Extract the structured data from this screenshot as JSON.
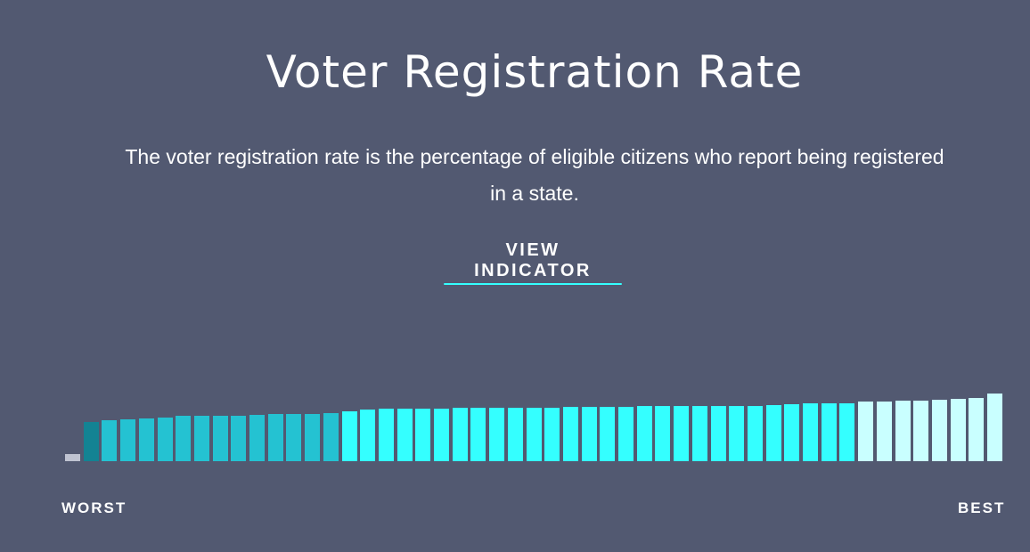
{
  "header": {
    "title": "Voter Registration Rate",
    "description_line1": "The voter registration rate is the percentage of eligible citizens who report being registered",
    "description_line2": "in a state."
  },
  "cta": {
    "label": "VIEW INDICATOR",
    "underline_color": "#34ffff"
  },
  "colors": {
    "background": "#525971",
    "no_data": "#bfc3d1",
    "worst": "#138393",
    "low": "#24c2d2",
    "mid": "#34ffff",
    "high": "#c9ffff"
  },
  "axis": {
    "left_label": "WORST",
    "right_label": "BEST"
  },
  "chart_data": {
    "type": "bar",
    "title": "Voter Registration Rate",
    "xlabel": "",
    "ylabel": "",
    "x_axis_labels": {
      "left": "WORST",
      "right": "BEST"
    },
    "grid": false,
    "legend": "none",
    "note": "States ranked from worst to best; relative bar heights in pixels (no numeric axis shown)",
    "values": [
      8,
      44,
      46,
      47,
      48,
      49,
      51,
      51,
      51,
      51,
      52,
      53,
      53,
      53,
      54,
      56,
      58,
      59,
      59,
      59,
      59,
      60,
      60,
      60,
      60,
      60,
      60,
      61,
      61,
      61,
      61,
      62,
      62,
      62,
      62,
      62,
      62,
      62,
      63,
      64,
      65,
      65,
      65,
      67,
      67,
      68,
      68,
      69,
      70,
      71,
      76
    ],
    "tiers": [
      "no_data",
      "worst",
      "low",
      "low",
      "low",
      "low",
      "low",
      "low",
      "low",
      "low",
      "low",
      "low",
      "low",
      "low",
      "low",
      "mid",
      "mid",
      "mid",
      "mid",
      "mid",
      "mid",
      "mid",
      "mid",
      "mid",
      "mid",
      "mid",
      "mid",
      "mid",
      "mid",
      "mid",
      "mid",
      "mid",
      "mid",
      "mid",
      "mid",
      "mid",
      "mid",
      "mid",
      "mid",
      "mid",
      "mid",
      "mid",
      "mid",
      "high",
      "high",
      "high",
      "high",
      "high",
      "high",
      "high",
      "high"
    ]
  }
}
